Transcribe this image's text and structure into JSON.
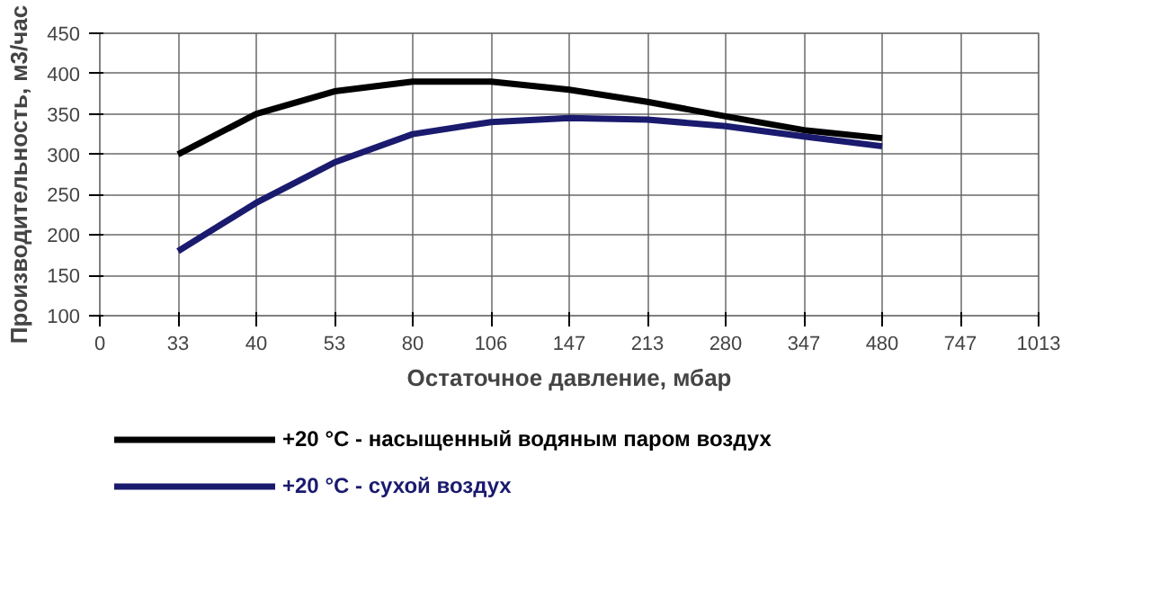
{
  "chart_data": {
    "type": "line",
    "xlabel": "Остаточное давление, мбар",
    "ylabel": "Производительность, м3/час",
    "categories": [
      "0",
      "33",
      "40",
      "53",
      "80",
      "106",
      "147",
      "213",
      "280",
      "347",
      "480",
      "747",
      "1013"
    ],
    "series": [
      {
        "name": "+20 °C - насыщенный водяным паром воздух",
        "color": "#000000",
        "values": [
          null,
          300,
          350,
          378,
          390,
          390,
          380,
          365,
          347,
          330,
          320,
          null,
          null
        ]
      },
      {
        "name": "+20 °C - сухой воздух",
        "color": "#1a1a6e",
        "values": [
          null,
          180,
          240,
          290,
          325,
          340,
          345,
          343,
          335,
          322,
          310,
          null,
          null
        ]
      }
    ],
    "ylim": [
      100,
      450
    ],
    "yticks": [
      100,
      150,
      200,
      250,
      300,
      350,
      400,
      450
    ],
    "grid": true,
    "legend": "bottom left",
    "marker": "none",
    "line_style": "solid"
  }
}
